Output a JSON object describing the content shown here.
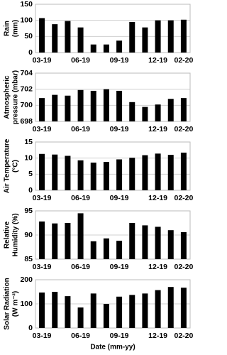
{
  "chart_data": [
    {
      "type": "bar",
      "ylabel": [
        "Rain",
        "(mm)"
      ],
      "color": "#000000",
      "grid": true,
      "categories": [
        "03-19",
        null,
        null,
        "06-19",
        null,
        null,
        "09-19",
        null,
        null,
        "12-19",
        null,
        "02-20"
      ],
      "values": [
        107,
        88,
        98,
        78,
        25,
        25,
        37,
        95,
        78,
        100,
        100,
        102
      ],
      "ylim": [
        0,
        150
      ],
      "yticks": [
        0,
        50,
        100,
        150
      ]
    },
    {
      "type": "bar",
      "ylabel": [
        "Atmospheric",
        "pressure (mbar)"
      ],
      "color": "#000000",
      "grid": true,
      "categories": [
        "03-19",
        null,
        null,
        "06-19",
        null,
        null,
        "09-19",
        null,
        null,
        "12-19",
        null,
        "02-20"
      ],
      "values": [
        700.9,
        701.3,
        701.2,
        701.9,
        701.8,
        702.0,
        701.8,
        700.4,
        699.8,
        700.1,
        700.8,
        700.9
      ],
      "ylim": [
        698,
        704
      ],
      "yticks": [
        698,
        700,
        702,
        704
      ]
    },
    {
      "type": "bar",
      "ylabel": [
        "Air Temperature",
        "(°C)"
      ],
      "color": "#000000",
      "grid": true,
      "categories": [
        "03-19",
        null,
        null,
        "06-19",
        null,
        null,
        "09-19",
        null,
        null,
        "12-19",
        null,
        "02-20"
      ],
      "values": [
        11.3,
        11.1,
        10.7,
        9.3,
        8.6,
        8.8,
        9.6,
        10.1,
        10.9,
        11.4,
        11.0,
        11.7
      ],
      "ylim": [
        0,
        15
      ],
      "yticks": [
        0,
        5,
        10,
        15
      ]
    },
    {
      "type": "bar",
      "ylabel": [
        "Relative",
        "Humidity (%)"
      ],
      "color": "#000000",
      "grid": true,
      "categories": [
        "03-19",
        null,
        null,
        "06-19",
        null,
        null,
        "09-19",
        null,
        null,
        "12-19",
        null,
        "02-20"
      ],
      "values": [
        92.8,
        92.4,
        92.5,
        94.5,
        88.7,
        89.3,
        88.8,
        92.5,
        92.0,
        91.7,
        91.0,
        90.6
      ],
      "ylim": [
        85,
        95
      ],
      "yticks": [
        85,
        90,
        95
      ]
    },
    {
      "type": "bar",
      "ylabel": [
        "Solar Radiation",
        "(W m⁻²)"
      ],
      "xlabel": "Date (mm-yy)",
      "color": "#000000",
      "grid": true,
      "categories": [
        "03-19",
        null,
        null,
        "06-19",
        null,
        null,
        "09-19",
        null,
        null,
        "12-19",
        null,
        "02-20"
      ],
      "values": [
        147,
        150,
        132,
        85,
        143,
        100,
        130,
        137,
        143,
        157,
        170,
        167
      ],
      "ylim": [
        0,
        200
      ],
      "yticks": [
        0,
        100,
        200
      ]
    }
  ]
}
